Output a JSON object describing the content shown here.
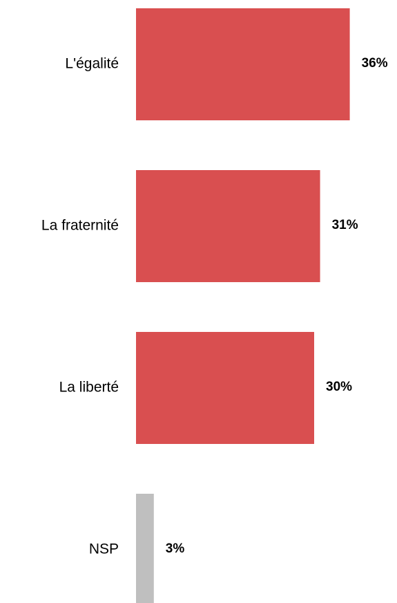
{
  "chart_data": {
    "type": "bar",
    "orientation": "horizontal",
    "categories": [
      "L'égalité",
      "La fraternité",
      "La liberté",
      "NSP"
    ],
    "values": [
      36,
      31,
      30,
      3
    ],
    "value_labels": [
      "36%",
      "31%",
      "30%",
      "3%"
    ],
    "colors": [
      "#d94f50",
      "#d94f50",
      "#d94f50",
      "#bfbfbf"
    ]
  }
}
